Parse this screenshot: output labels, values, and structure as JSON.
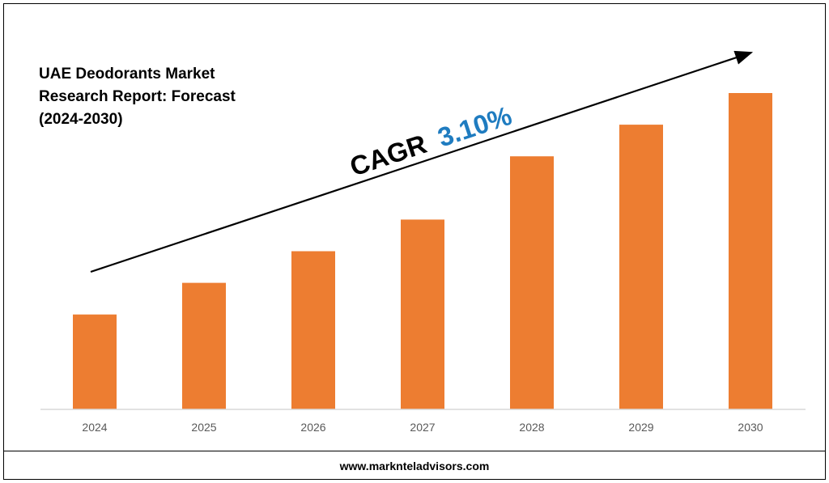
{
  "title_lines": [
    "UAE Deodorants Market",
    "Research Report: Forecast",
    "(2024-2030)"
  ],
  "cagr": {
    "prefix": "CAGR",
    "value": "3.10%"
  },
  "footer": {
    "url": "www.marknteladvisors.com"
  },
  "colors": {
    "bar": "#ED7D31",
    "cagr_value": "#1F7CC0",
    "text": "#000000",
    "axis": "#D9D9D9"
  },
  "chart_data": {
    "type": "bar",
    "categories": [
      "2024",
      "2025",
      "2026",
      "2027",
      "2028",
      "2029",
      "2030"
    ],
    "values": [
      30,
      40,
      50,
      60,
      80,
      90,
      100
    ],
    "ylim": [
      0,
      100
    ],
    "title": "UAE Deodorants Market Research Report: Forecast (2024-2030)",
    "xlabel": "",
    "ylabel": "",
    "grid": false,
    "legend": "none",
    "annotation": "CAGR 3.10%"
  }
}
